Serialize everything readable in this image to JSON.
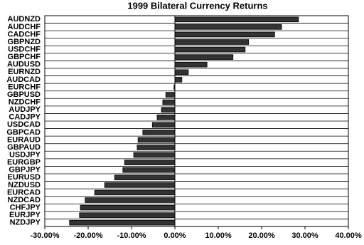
{
  "chart_data": {
    "type": "barh",
    "title": "1999 Bilateral Currency Returns",
    "categories": [
      "AUDNZD",
      "AUDCHF",
      "CADCHF",
      "GBPNZD",
      "USDCHF",
      "GBPCHF",
      "AUDUSD",
      "EURNZD",
      "AUDCAD",
      "EURCHF",
      "GBPUSD",
      "NZDCHF",
      "AUDJPY",
      "CADJPY",
      "USDCAD",
      "GBPCAD",
      "EURAUD",
      "GBPAUD",
      "USDJPY",
      "EURGBP",
      "GBPJPY",
      "EURUSD",
      "NZDUSD",
      "EURCAD",
      "NZDCAD",
      "CHFJPY",
      "EURJPY",
      "NZDJPY"
    ],
    "values": [
      28.5,
      24.6,
      23.0,
      17.0,
      16.2,
      13.4,
      7.4,
      3.1,
      1.6,
      -0.2,
      -2.1,
      -2.8,
      -3.1,
      -4.1,
      -5.2,
      -7.4,
      -8.5,
      -8.7,
      -9.5,
      -11.6,
      -12.0,
      -13.9,
      -16.2,
      -18.5,
      -20.7,
      -21.8,
      -22.0,
      -24.3
    ],
    "color": "#333333",
    "xlim": [
      -30,
      40
    ],
    "xticks": [
      {
        "value": -30,
        "label": "-30.00%"
      },
      {
        "value": -20,
        "label": "-20.00%"
      },
      {
        "value": -10,
        "label": "-10.00%"
      },
      {
        "value": 0,
        "label": "0.00%"
      },
      {
        "value": 10,
        "label": "10.00%"
      },
      {
        "value": 20,
        "label": "20.00%"
      },
      {
        "value": 30,
        "label": "30.00%"
      },
      {
        "value": 40,
        "label": "40.00%"
      }
    ]
  }
}
